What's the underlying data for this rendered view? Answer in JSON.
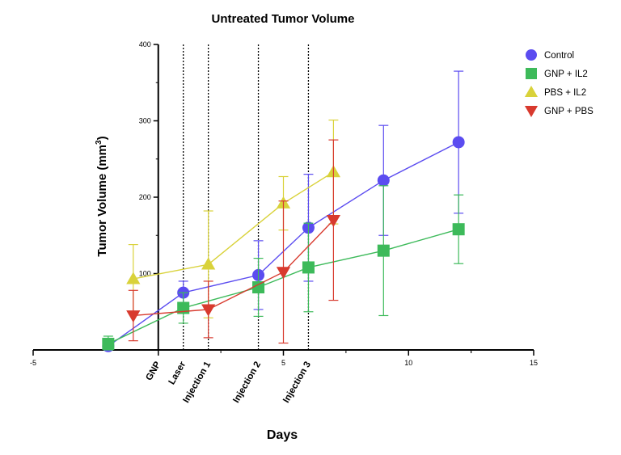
{
  "chart_data": {
    "type": "line",
    "title": "Untreated Tumor Volume",
    "xlabel": "Days",
    "ylabel": "Tumor Volume (mm",
    "ylabel_sup": "3",
    "ylabel_close": ")",
    "xlim": [
      -5,
      15
    ],
    "ylim": [
      0,
      400
    ],
    "x_ticks": [
      -5,
      0,
      5,
      10,
      15
    ],
    "x_tick_labels": [
      "-5",
      "",
      "5",
      "10",
      "15"
    ],
    "y_ticks": [
      100,
      200,
      300,
      400
    ],
    "y_tick_labels": [
      "100",
      "200",
      "300",
      "400"
    ],
    "grid": false,
    "legend_position": "top-right",
    "event_lines": [
      {
        "label": "GNP",
        "x": 0,
        "style": "solid"
      },
      {
        "label": "Laser",
        "x": 1,
        "style": "dotted"
      },
      {
        "label": "Injection 1",
        "x": 2,
        "style": "dotted"
      },
      {
        "label": "Injection 2",
        "x": 4,
        "style": "dotted"
      },
      {
        "label": "Injection 3",
        "x": 6,
        "style": "dotted"
      }
    ],
    "event_label_positions": [
      0,
      1,
      2,
      4,
      6
    ],
    "series": [
      {
        "name": "Control",
        "color": "#5b4cf0",
        "marker": "circle",
        "x": [
          -2,
          1,
          4,
          6,
          9,
          12
        ],
        "y": [
          5,
          75,
          98,
          160,
          222,
          272
        ],
        "err": [
          8,
          15,
          45,
          70,
          72,
          93
        ]
      },
      {
        "name": "GNP + IL2",
        "color": "#3dba5a",
        "marker": "square",
        "x": [
          -2,
          1,
          4,
          6,
          9,
          12
        ],
        "y": [
          8,
          55,
          82,
          108,
          130,
          158
        ],
        "err": [
          10,
          20,
          38,
          58,
          85,
          45
        ]
      },
      {
        "name": "PBS + IL2",
        "color": "#d9d23a",
        "marker": "triangle-up",
        "x": [
          -1,
          2,
          5,
          7
        ],
        "y": [
          93,
          112,
          192,
          233
        ],
        "err": [
          45,
          70,
          35,
          68
        ]
      },
      {
        "name": "GNP + PBS",
        "color": "#d83a2e",
        "marker": "triangle-down",
        "x": [
          -1,
          2,
          5,
          7
        ],
        "y": [
          45,
          53,
          102,
          170
        ],
        "err": [
          33,
          37,
          93,
          105
        ]
      }
    ]
  }
}
